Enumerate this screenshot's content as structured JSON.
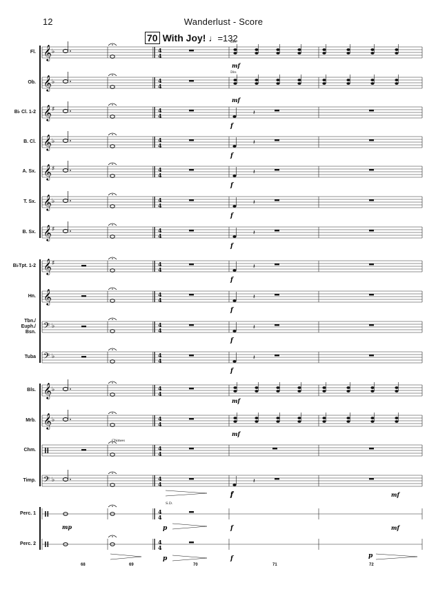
{
  "header": {
    "page_number": "12",
    "title": "Wanderlust - Score"
  },
  "rehearsal": {
    "number": "70",
    "text": "With Joy!",
    "tempo": "=132"
  },
  "instruments": [
    {
      "label": "Fl.",
      "lines": [
        "Fl."
      ]
    },
    {
      "label": "Ob.",
      "lines": [
        "Ob."
      ]
    },
    {
      "label": "B♭ Cl. 1-2",
      "lines": [
        "B♭ Cl. 1-2"
      ]
    },
    {
      "label": "B. Cl.",
      "lines": [
        "B. Cl."
      ]
    },
    {
      "label": "A. Sx.",
      "lines": [
        "A. Sx."
      ]
    },
    {
      "label": "T. Sx.",
      "lines": [
        "T. Sx."
      ]
    },
    {
      "label": "B. Sx.",
      "lines": [
        "B. Sx."
      ]
    },
    {
      "label": "B♭Tpt. 1-2",
      "lines": [
        "B♭Tpt. 1-2"
      ]
    },
    {
      "label": "Hn.",
      "lines": [
        "Hn."
      ]
    },
    {
      "label": "Tbn./ Euph./ Bsn.",
      "lines": [
        "Tbn./",
        "Euph./",
        "Bsn."
      ]
    },
    {
      "label": "Tuba",
      "lines": [
        "Tuba"
      ]
    },
    {
      "label": "Bls.",
      "lines": [
        "Bls."
      ]
    },
    {
      "label": "Mrb.",
      "lines": [
        "Mrb."
      ]
    },
    {
      "label": "Chm.",
      "lines": [
        "Chm."
      ]
    },
    {
      "label": "Timp.",
      "lines": [
        "Timp."
      ]
    },
    {
      "label": "Perc. 1",
      "lines": [
        "Perc. 1"
      ]
    },
    {
      "label": "Perc. 2",
      "lines": [
        "Perc. 2"
      ]
    }
  ],
  "markings": {
    "div_1": "Div.",
    "div_2": "Div.",
    "mf": "mf",
    "f": "f",
    "p": "p",
    "mp": "mp",
    "chimes": "Chimes",
    "sd": "S.D.",
    "time_sig": "4"
  },
  "measure_numbers": [
    "68",
    "69",
    "70",
    "71",
    "72"
  ]
}
